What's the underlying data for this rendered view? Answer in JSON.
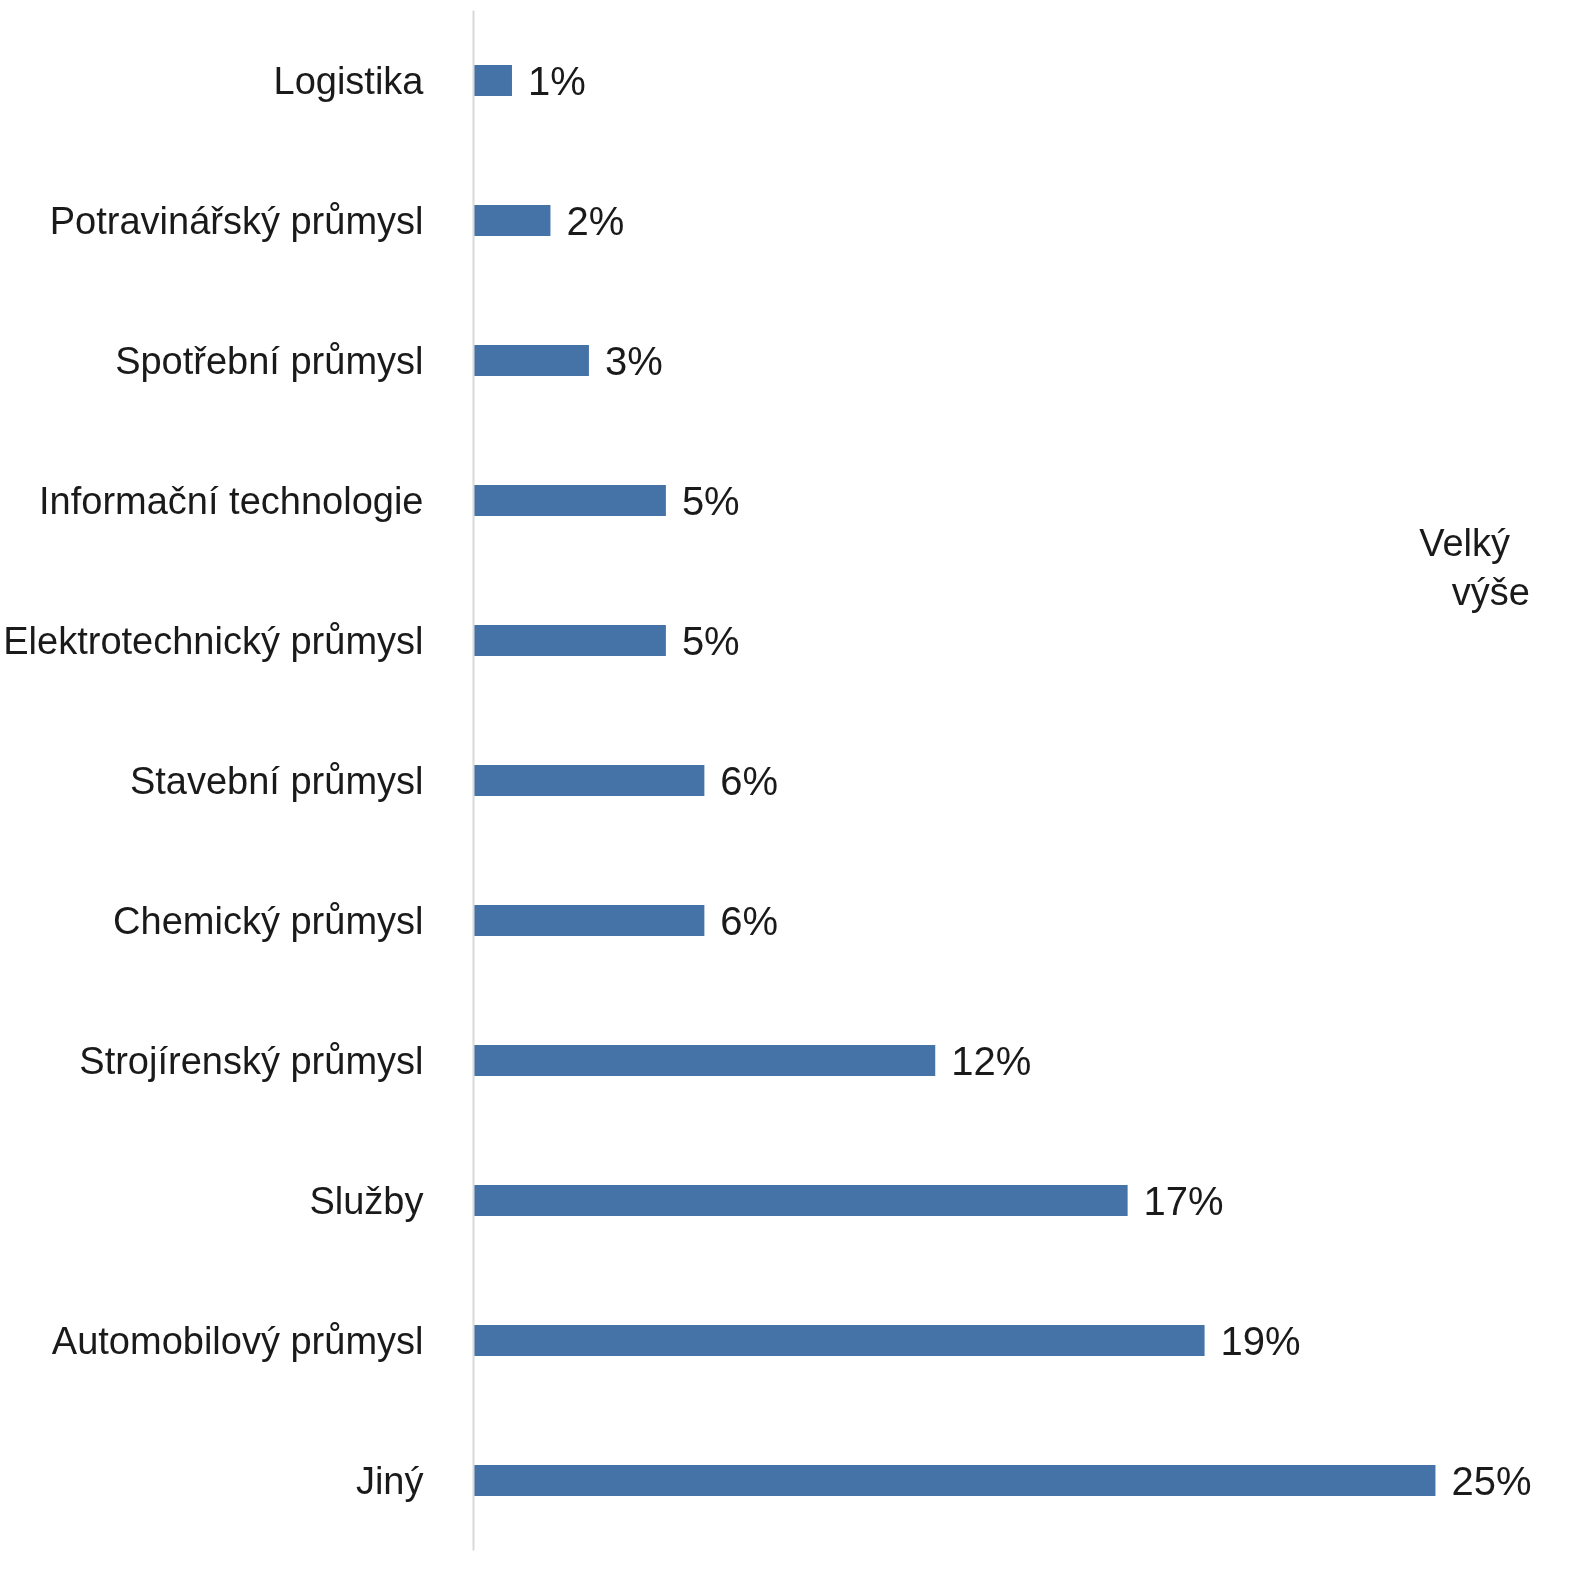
{
  "chart_data": {
    "type": "bar",
    "orientation": "horizontal",
    "categories": [
      "Logistika",
      "Potravinářský průmysl",
      "Spotřební průmysl",
      "Informační technologie",
      "Elektrotechnický průmysl",
      "Stavební průmysl",
      "Chemický průmysl",
      "Strojírenský průmysl",
      "Služby",
      "Automobilový průmysl",
      "Jiný"
    ],
    "values": [
      1,
      2,
      3,
      5,
      5,
      6,
      6,
      12,
      17,
      19,
      25
    ],
    "value_labels": [
      "1%",
      "2%",
      "3%",
      "5%",
      "5%",
      "6%",
      "6%",
      "12%",
      "17%",
      "19%",
      "25%"
    ],
    "color": "#4573a7",
    "grid": false,
    "annotations": [
      "Velký\nvýše"
    ]
  }
}
